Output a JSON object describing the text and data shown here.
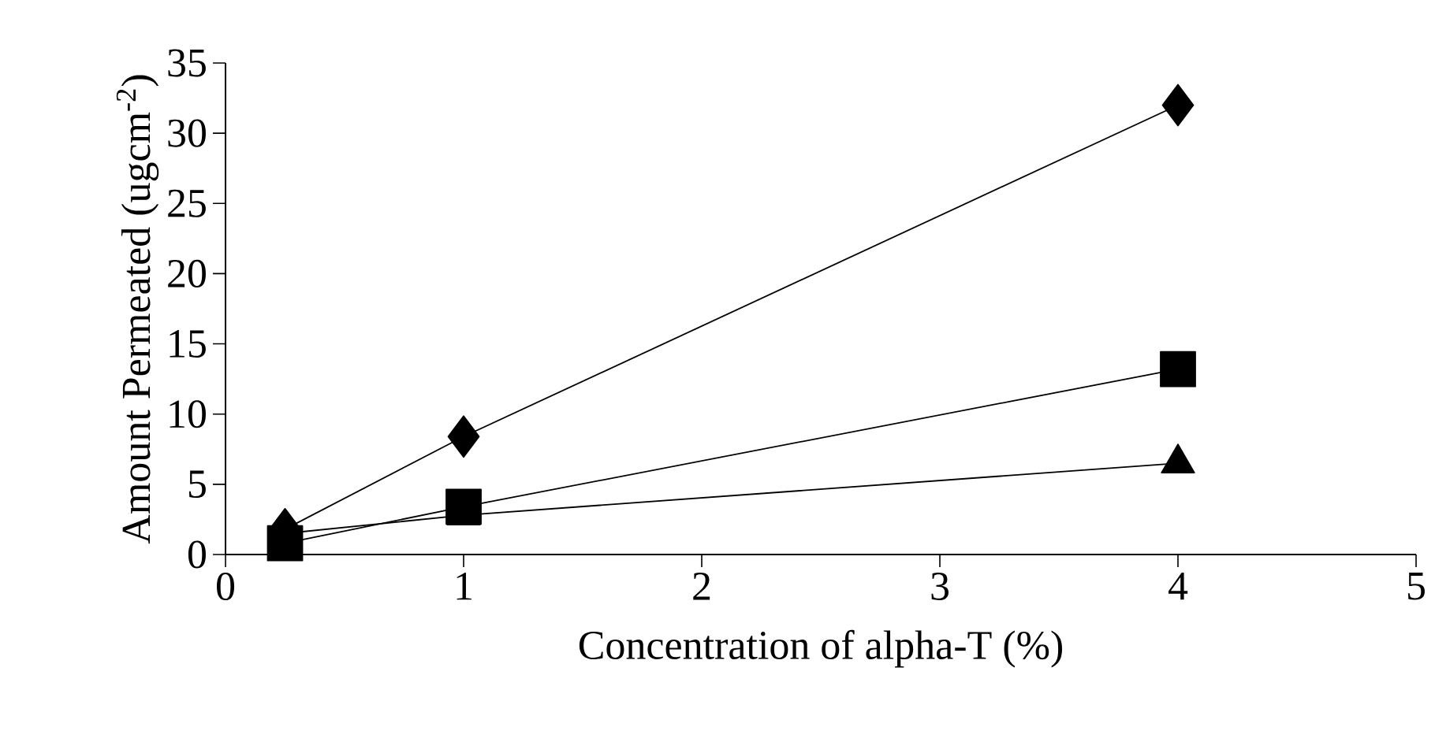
{
  "chart_data": {
    "type": "line",
    "xlabel": "Concentration of alpha-T  (%)",
    "ylabel": "Amount Permeated (ugcm$^{-2}$)",
    "x": [
      0.25,
      1,
      4
    ],
    "series": [
      {
        "color": "#000000",
        "marker": "diamond",
        "values": [
          1.8,
          8.4,
          32.0
        ]
      },
      {
        "color": "#000000",
        "marker": "square",
        "values": [
          0.8,
          3.4,
          13.2
        ]
      },
      {
        "color": "#000000",
        "marker": "triangle",
        "values": [
          1.5,
          2.8,
          6.5
        ]
      }
    ],
    "xlim": [
      0,
      5
    ],
    "xticks": [
      0,
      1,
      2,
      3,
      4,
      5
    ],
    "ylim": [
      0,
      35
    ],
    "yticks": [
      0,
      5,
      10,
      15,
      20,
      25,
      30,
      35
    ],
    "grid": false,
    "line_style": "solid"
  }
}
